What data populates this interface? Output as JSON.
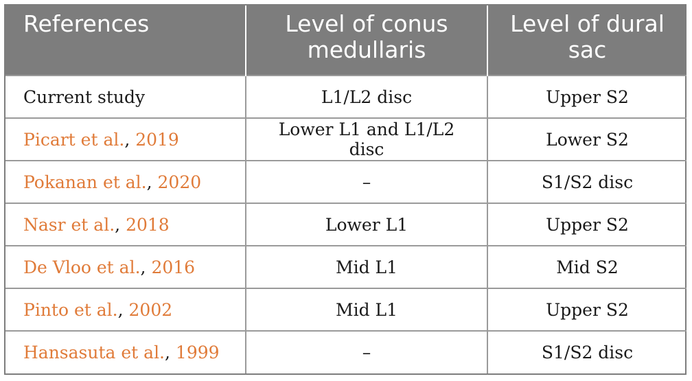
{
  "table": {
    "headers": [
      "References",
      "Level of conus medullaris",
      "Level of dural sac"
    ],
    "rows": [
      {
        "author": "Current study",
        "sep": "",
        "year": "",
        "conus": "L1/L2 disc",
        "dural": "Upper S2",
        "linked": false
      },
      {
        "author": "Picart et al.",
        "sep": ", ",
        "year": "2019",
        "conus": "Lower L1 and L1/L2 disc",
        "dural": "Lower S2",
        "linked": true
      },
      {
        "author": "Pokanan et al.",
        "sep": ", ",
        "year": "2020",
        "conus": "–",
        "dural": "S1/S2 disc",
        "linked": true
      },
      {
        "author": "Nasr et al.",
        "sep": ", ",
        "year": "2018",
        "conus": "Lower L1",
        "dural": "Upper S2",
        "linked": true
      },
      {
        "author": "De Vloo et al.",
        "sep": ", ",
        "year": "2016",
        "conus": "Mid L1",
        "dural": "Mid S2",
        "linked": true
      },
      {
        "author": "Pinto et al.",
        "sep": ", ",
        "year": "2002",
        "conus": "Mid L1",
        "dural": "Upper S2",
        "linked": true
      },
      {
        "author": "Hansasuta et al.",
        "sep": ", ",
        "year": "1999",
        "conus": "–",
        "dural": "S1/S2 disc",
        "linked": true
      }
    ]
  },
  "colors": {
    "header_bg": "#7d7d7d",
    "link": "#e07b39",
    "text": "#1a1a1a"
  }
}
